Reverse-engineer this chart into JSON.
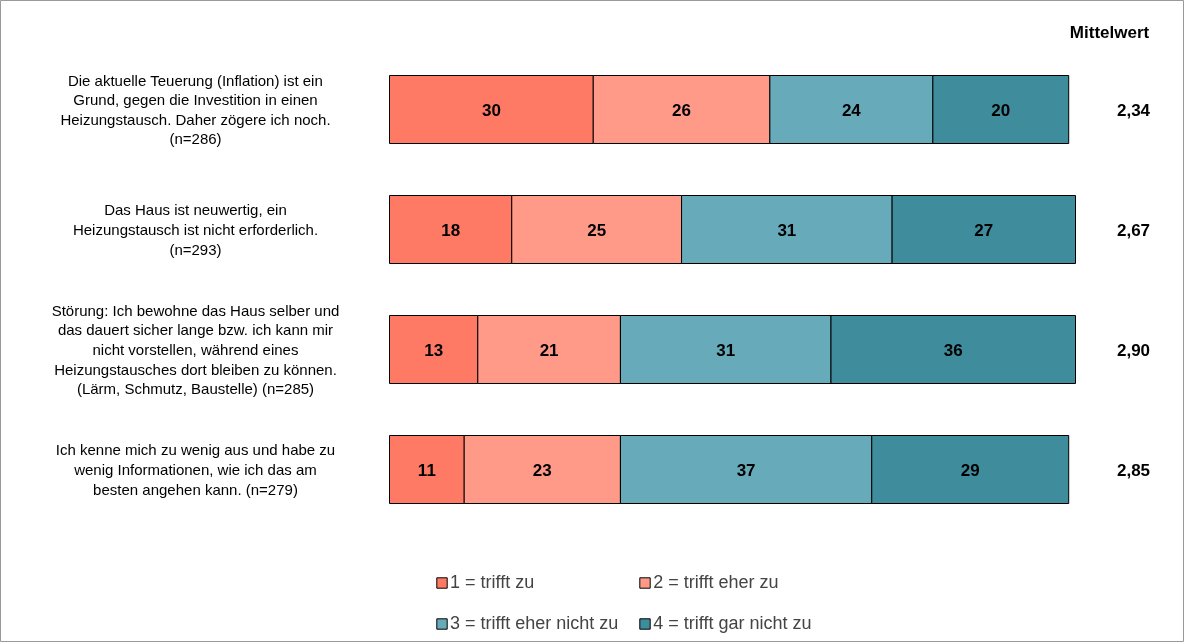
{
  "chart_data": {
    "type": "bar",
    "orientation": "horizontal",
    "stacked": true,
    "data_labels": true,
    "legend": "bottom",
    "grid": false,
    "categories": [
      "Die aktuelle Teuerung (Inflation) ist ein\nGrund, gegen die Investition in einen\nHeizungstausch. Daher zögere ich noch.\n(n=286)",
      "Das Haus ist neuwertig, ein\nHeizungstausch ist nicht erforderlich.\n(n=293)",
      "Störung: Ich bewohne das Haus selber und\ndas dauert sicher lange bzw. ich kann mir\nnicht vorstellen, während eines\nHeizungstausches dort bleiben zu können.\n(Lärm, Schmutz, Baustelle) (n=285)",
      "Ich kenne mich zu wenig aus und habe zu\nwenig Informationen, wie ich das am\nbesten angehen kann. (n=279)"
    ],
    "series": [
      {
        "name": "1 = trifft zu",
        "color": "#ff7a64",
        "values": [
          30,
          18,
          13,
          11
        ]
      },
      {
        "name": "2 = trifft eher zu",
        "color": "#ff9a88",
        "values": [
          26,
          25,
          21,
          23
        ]
      },
      {
        "name": "3 = trifft eher nicht zu",
        "color": "#67aab9",
        "values": [
          24,
          31,
          31,
          37
        ]
      },
      {
        "name": "4 = trifft gar nicht zu",
        "color": "#3e8c9c",
        "values": [
          20,
          27,
          36,
          29
        ]
      }
    ],
    "annotations": [
      "Mittelwert",
      "2,34",
      "2,67",
      "2,90",
      "2,85"
    ]
  }
}
